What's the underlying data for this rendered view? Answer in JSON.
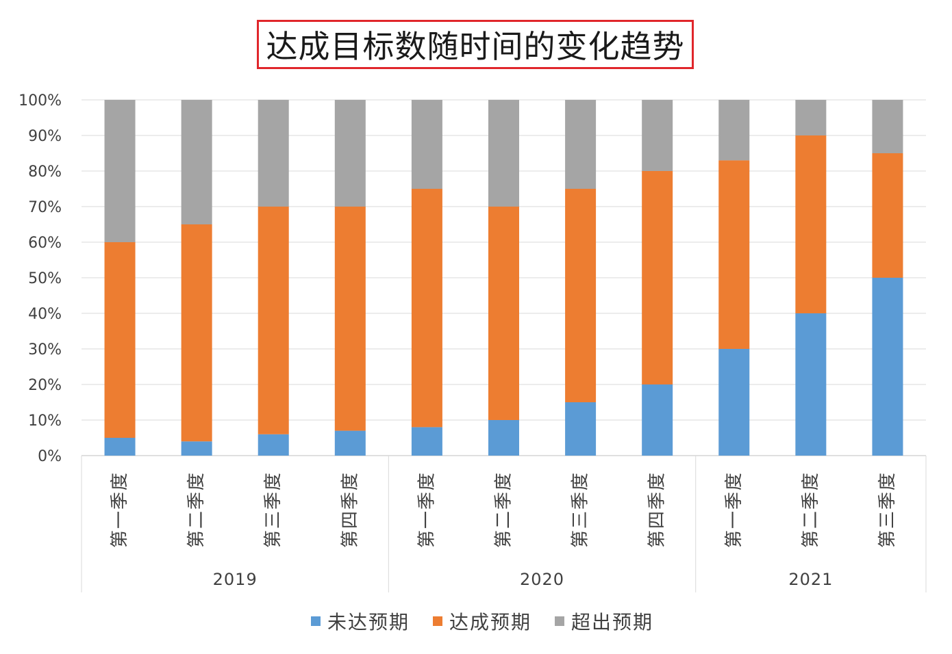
{
  "title": "达成目标数随时间的变化趋势",
  "colors": {
    "missed": "#5b9bd5",
    "met": "#ed7d31",
    "exceeded": "#a5a5a5",
    "title_border": "#e0262b"
  },
  "legend": [
    {
      "label": "未达预期",
      "color": "#5b9bd5"
    },
    {
      "label": "达成预期",
      "color": "#ed7d31"
    },
    {
      "label": "超出预期",
      "color": "#a5a5a5"
    }
  ],
  "chart_data": {
    "type": "bar",
    "stacked": "percent",
    "title": "达成目标数随时间的变化趋势",
    "y_ticks": [
      "0%",
      "10%",
      "20%",
      "30%",
      "40%",
      "50%",
      "60%",
      "70%",
      "80%",
      "90%",
      "100%"
    ],
    "ylim": [
      0,
      100
    ],
    "categories": [
      "第一季度",
      "第二季度",
      "第三季度",
      "第四季度",
      "第一季度",
      "第二季度",
      "第三季度",
      "第四季度",
      "第一季度",
      "第二季度",
      "第三季度"
    ],
    "groups": [
      {
        "label": "2019",
        "count": 4
      },
      {
        "label": "2020",
        "count": 4
      },
      {
        "label": "2021",
        "count": 3
      }
    ],
    "series": [
      {
        "name": "未达预期",
        "color": "#5b9bd5",
        "values": [
          5,
          4,
          6,
          7,
          8,
          10,
          15,
          20,
          30,
          40,
          50
        ]
      },
      {
        "name": "达成预期",
        "color": "#ed7d31",
        "values": [
          55,
          61,
          64,
          63,
          67,
          60,
          60,
          60,
          53,
          50,
          35
        ]
      },
      {
        "name": "超出预期",
        "color": "#a5a5a5",
        "values": [
          40,
          35,
          30,
          30,
          25,
          30,
          25,
          20,
          17,
          10,
          15
        ]
      }
    ],
    "grid": true,
    "legend_position": "bottom"
  }
}
